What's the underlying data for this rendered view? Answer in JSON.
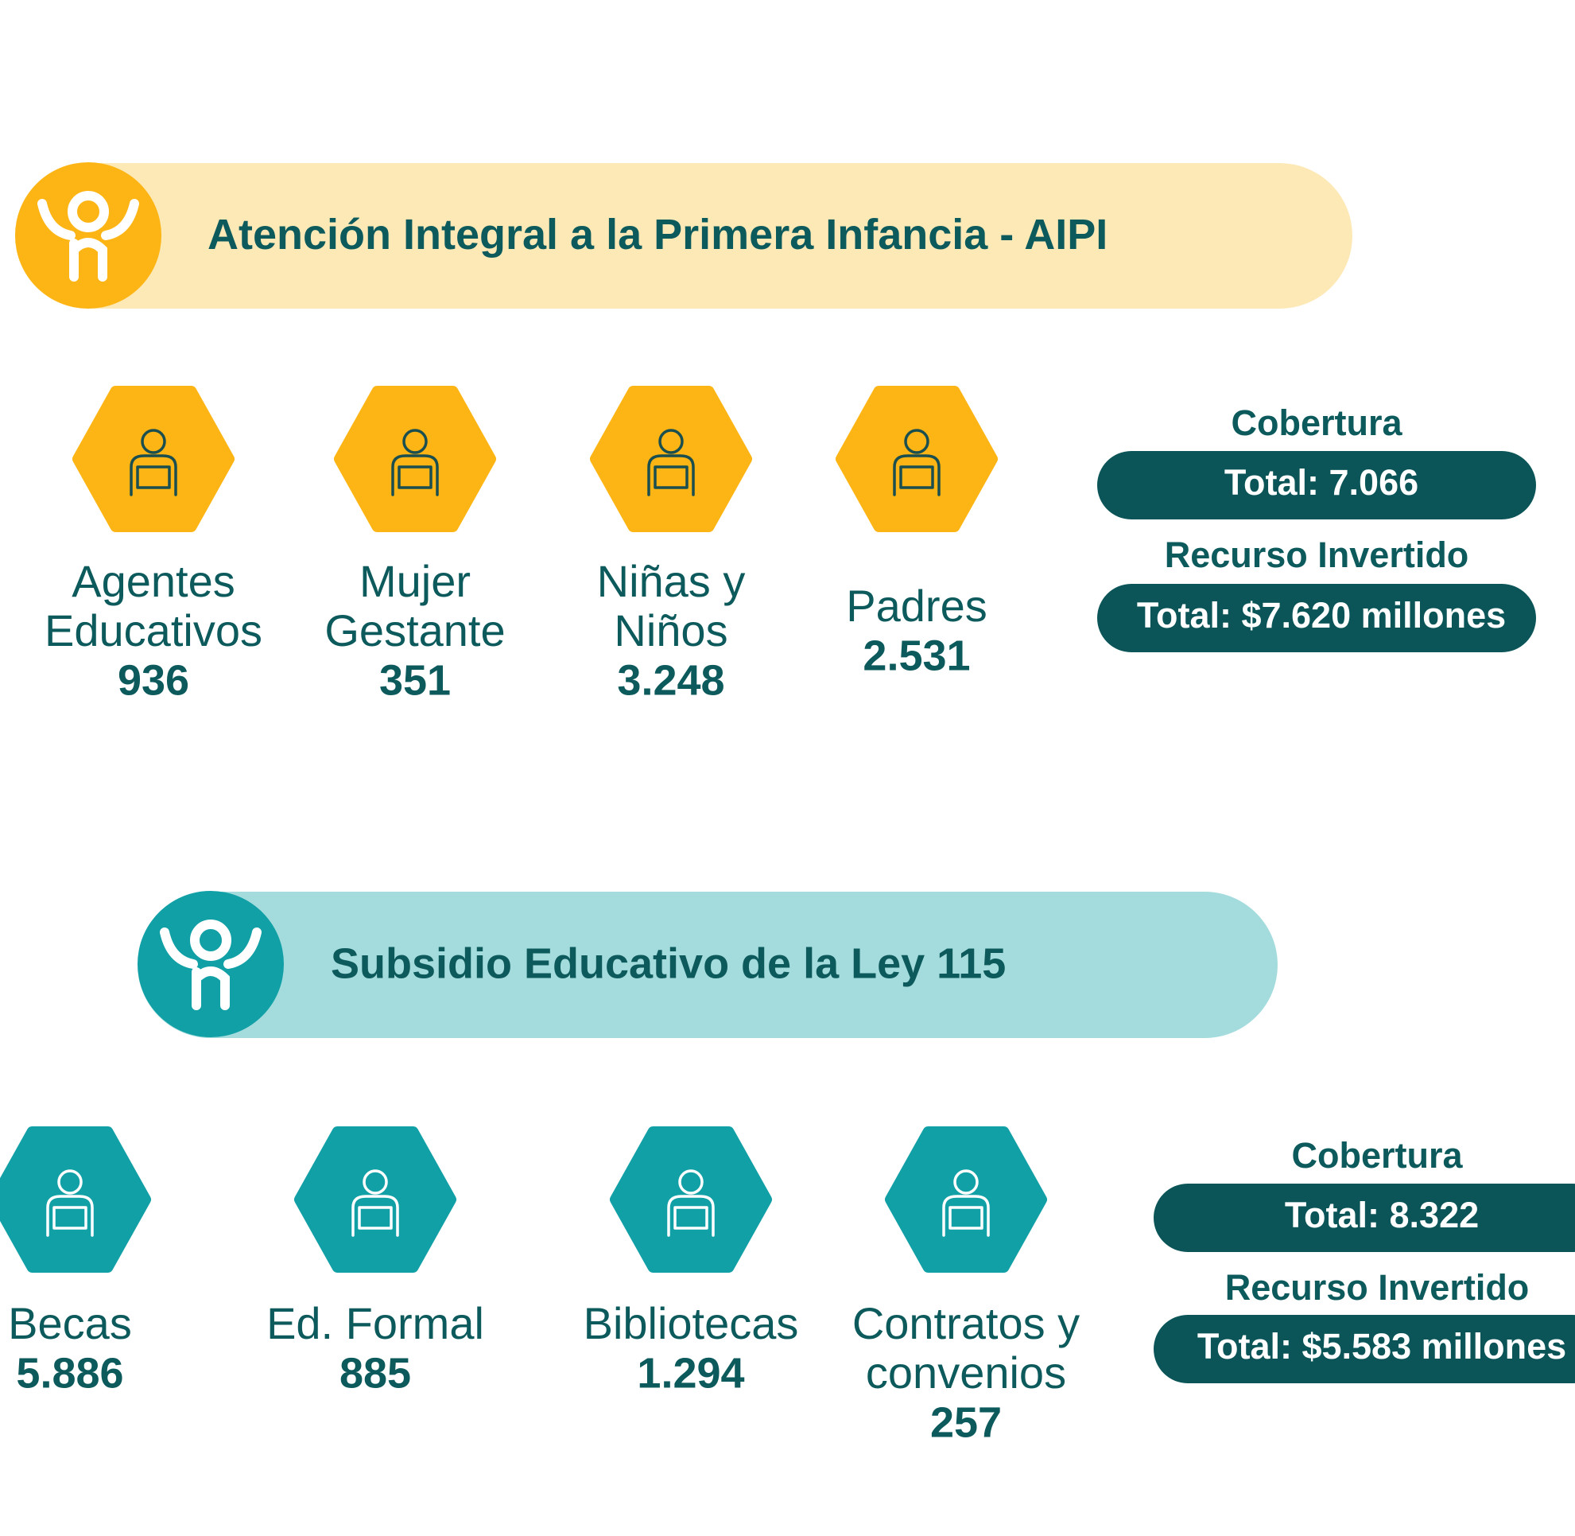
{
  "sections": [
    {
      "title": "Atención Integral a la Primera Infancia - AIPI",
      "items": [
        {
          "label_lines": [
            "Agentes",
            "Educativos"
          ],
          "value": "936"
        },
        {
          "label_lines": [
            "Mujer",
            "Gestante"
          ],
          "value": "351"
        },
        {
          "label_lines": [
            "Niñas y",
            "Niños"
          ],
          "value": "3.248"
        },
        {
          "label_lines": [
            "Padres"
          ],
          "value": "2.531"
        }
      ],
      "coverage_label": "Cobertura",
      "coverage_total": "Total: 7.066",
      "investment_label": "Recurso Invertido",
      "investment_total": "Total: $7.620 millones"
    },
    {
      "title": "Subsidio Educativo de la Ley 115",
      "items": [
        {
          "label_lines": [
            "Becas"
          ],
          "value": "5.886"
        },
        {
          "label_lines": [
            "Ed. Formal"
          ],
          "value": "885"
        },
        {
          "label_lines": [
            "Bibliotecas"
          ],
          "value": "1.294"
        },
        {
          "label_lines": [
            "Contratos y",
            "convenios"
          ],
          "value": "257"
        }
      ],
      "coverage_label": "Cobertura",
      "coverage_total": "Total: 8.322",
      "investment_label": "Recurso Invertido",
      "investment_total": "Total: $5.583 millones"
    }
  ]
}
